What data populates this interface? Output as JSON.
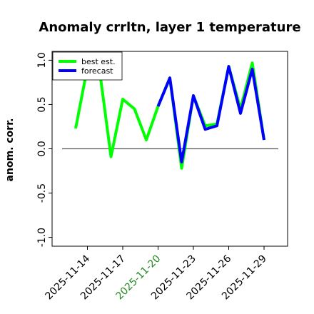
{
  "chart_data": {
    "type": "line",
    "title": "Anomaly crrltn, layer 1 temperature",
    "y_label": "anom. corr.",
    "x": [
      "2025-11-13",
      "2025-11-14",
      "2025-11-15",
      "2025-11-16",
      "2025-11-17",
      "2025-11-18",
      "2025-11-19",
      "2025-11-20",
      "2025-11-21",
      "2025-11-22",
      "2025-11-23",
      "2025-11-24",
      "2025-11-25",
      "2025-11-26",
      "2025-11-27",
      "2025-11-28",
      "2025-11-29"
    ],
    "series": [
      {
        "name": "best est.",
        "color": "#00ff00",
        "values": [
          0.23,
          0.92,
          0.92,
          -0.09,
          0.56,
          0.45,
          0.1,
          0.48,
          0.8,
          -0.22,
          0.6,
          0.26,
          0.28,
          0.93,
          0.45,
          0.97,
          0.1
        ]
      },
      {
        "name": "forecast",
        "color": "#0000ff",
        "values": [
          null,
          null,
          null,
          null,
          null,
          null,
          null,
          0.48,
          0.8,
          -0.15,
          0.6,
          0.22,
          0.26,
          0.93,
          0.4,
          0.9,
          0.1
        ]
      }
    ],
    "xlim": [
      "2025-11-11",
      "2025-12-01"
    ],
    "xticks": [
      "2025-11-14",
      "2025-11-17",
      "2025-11-20",
      "2025-11-23",
      "2025-11-26",
      "2025-11-29"
    ],
    "highlight_xtick": "2025-11-20",
    "highlight_color": "#228b22",
    "ylim": [
      -1.1,
      1.1
    ],
    "yticks": [
      {
        "value": -1,
        "label": "-1.0"
      },
      {
        "value": -0.5,
        "label": "-0.5"
      },
      {
        "value": 0,
        "label": "0.0"
      },
      {
        "value": 0.5,
        "label": "0.5"
      },
      {
        "value": 1,
        "label": "1.0"
      }
    ],
    "reference_line": 0,
    "legend": "upper left"
  }
}
